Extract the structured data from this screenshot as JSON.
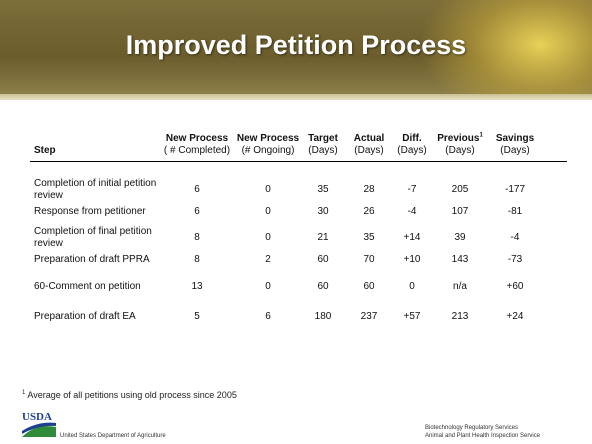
{
  "header": {
    "title": "Improved Petition Process"
  },
  "table": {
    "columns": [
      {
        "top": "",
        "bottom": "Step"
      },
      {
        "top": "New Process",
        "bottom": "( # Completed)"
      },
      {
        "top": "New Process",
        "bottom": "(# Ongoing)"
      },
      {
        "top": "Target",
        "bottom": "(Days)"
      },
      {
        "top": "Actual",
        "bottom": "(Days)"
      },
      {
        "top": "Diff.",
        "bottom": "(Days)"
      },
      {
        "top": "Previous",
        "sup": "1",
        "bottom": "(Days)"
      },
      {
        "top": "Savings",
        "bottom": "(Days)"
      }
    ],
    "rows": [
      [
        "Completion of initial petition review",
        "6",
        "0",
        "35",
        "28",
        "-7",
        "205",
        "-177"
      ],
      [
        "Response from petitioner",
        "6",
        "0",
        "30",
        "26",
        "-4",
        "107",
        "-81"
      ],
      [
        "Completion of final petition review",
        "8",
        "0",
        "21",
        "35",
        "+14",
        "39",
        "-4"
      ],
      [
        "Preparation of draft PPRA",
        "8",
        "2",
        "60",
        "70",
        "+10",
        "143",
        "-73"
      ],
      [
        "60-Comment on petition",
        "13",
        "0",
        "60",
        "60",
        "0",
        "n/a",
        "+60"
      ],
      [
        "Preparation of draft EA",
        "5",
        "6",
        "180",
        "237",
        "+57",
        "213",
        "+24"
      ]
    ]
  },
  "footnote": {
    "sup": "1",
    "text": "Average of all petitions using old process since 2005"
  },
  "footer": {
    "logo": "USDA",
    "agency": "United States Department of Agriculture",
    "right": [
      "Biotechnology Regulatory Services",
      "Animal and Plant Health Inspection Service"
    ]
  }
}
